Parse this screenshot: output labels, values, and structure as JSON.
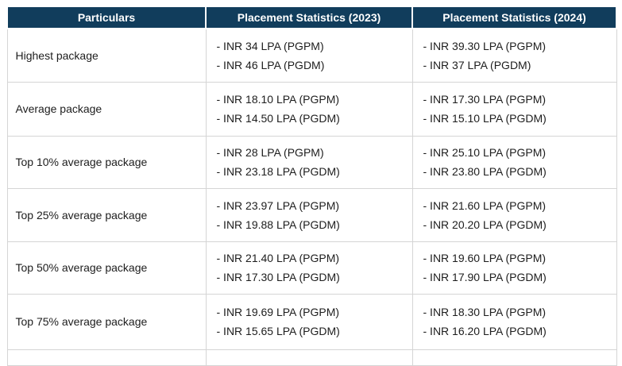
{
  "table": {
    "headers": [
      "Particulars",
      "Placement Statistics (2023)",
      "Placement Statistics (2024)"
    ],
    "rows": [
      {
        "particular": "Highest package",
        "stats_2023": [
          "- INR 34 LPA (PGPM)",
          "- INR 46 LPA (PGDM)"
        ],
        "stats_2024": [
          "- INR 39.30 LPA (PGPM)",
          "- INR 37 LPA (PGDM)"
        ]
      },
      {
        "particular": "Average package",
        "stats_2023": [
          "- INR 18.10 LPA (PGPM)",
          "- INR 14.50 LPA (PGDM)"
        ],
        "stats_2024": [
          "- INR 17.30 LPA (PGPM)",
          "- INR 15.10 LPA (PGDM)"
        ]
      },
      {
        "particular": "Top 10% average package",
        "stats_2023": [
          "- INR 28 LPA (PGPM)",
          "- INR 23.18 LPA (PGDM)"
        ],
        "stats_2024": [
          "- INR 25.10 LPA (PGPM)",
          "- INR 23.80 LPA (PGDM)"
        ]
      },
      {
        "particular": "Top 25% average package",
        "stats_2023": [
          "- INR 23.97 LPA (PGPM)",
          "- INR 19.88 LPA (PGDM)"
        ],
        "stats_2024": [
          "- INR 21.60 LPA (PGPM)",
          "- INR 20.20 LPA (PGDM)"
        ]
      },
      {
        "particular": "Top 50% average package",
        "stats_2023": [
          "- INR 21.40 LPA (PGPM)",
          "- INR 17.30 LPA (PGDM)"
        ],
        "stats_2024": [
          "- INR 19.60 LPA (PGPM)",
          "- INR 17.90 LPA (PGDM)"
        ]
      },
      {
        "particular": "Top 75% average package",
        "stats_2023": [
          "- INR 19.69 LPA (PGPM)",
          "- INR 15.65 LPA (PGDM)"
        ],
        "stats_2024": [
          "- INR 18.30 LPA (PGPM)",
          "- INR 16.20 LPA (PGDM)"
        ]
      }
    ]
  },
  "colors": {
    "header_bg": "#113d5c",
    "header_text": "#ffffff",
    "body_text": "#1d1d1d",
    "row_border": "#d5d5d5"
  }
}
